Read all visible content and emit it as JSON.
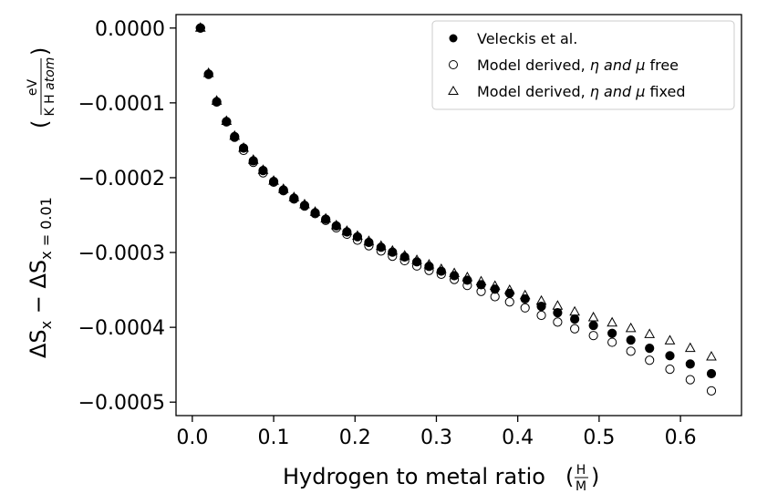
{
  "chart_data": {
    "type": "scatter",
    "title": "",
    "xlabel": "Hydrogen to metal ratio",
    "xlabel_fraction": {
      "numerator": "H",
      "denominator": "M"
    },
    "ylabel_parts": {
      "delta_s": "ΔS",
      "sub_x": "x",
      "minus": " − ",
      "sub_x_eq": "x = 0.01"
    },
    "ylabel_unit": {
      "numerator": "eV",
      "denominator_upright": "K H ",
      "denominator_italic": "atom"
    },
    "xlim": [
      -0.02,
      0.675
    ],
    "ylim": [
      -0.000518,
      1.8e-05
    ],
    "xticks": [
      0.0,
      0.1,
      0.2,
      0.3,
      0.4,
      0.5,
      0.6
    ],
    "xtick_labels": [
      "0.0",
      "0.1",
      "0.2",
      "0.3",
      "0.4",
      "0.5",
      "0.6"
    ],
    "yticks": [
      0.0,
      -0.0001,
      -0.0002,
      -0.0003,
      -0.0004,
      -0.0005
    ],
    "ytick_labels": [
      "0.0000",
      "−0.0001",
      "−0.0002",
      "−0.0003",
      "−0.0004",
      "−0.0005"
    ],
    "grid": false,
    "legend_position": "top-right",
    "legend": {
      "veleckis": "Veleckis et al.",
      "free_prefix": "Model derived, ",
      "free_italic": "η and μ",
      "free_suffix": " free",
      "fixed_prefix": "Model derived, ",
      "fixed_italic": "η and μ",
      "fixed_suffix": " fixed"
    },
    "x": [
      0.01,
      0.02,
      0.03,
      0.042,
      0.052,
      0.063,
      0.075,
      0.087,
      0.1,
      0.112,
      0.125,
      0.138,
      0.151,
      0.164,
      0.177,
      0.19,
      0.203,
      0.217,
      0.232,
      0.246,
      0.261,
      0.276,
      0.291,
      0.306,
      0.322,
      0.338,
      0.355,
      0.372,
      0.39,
      0.409,
      0.429,
      0.449,
      0.47,
      0.493,
      0.516,
      0.539,
      0.562,
      0.587,
      0.612,
      0.638
    ],
    "series": [
      {
        "name": "Veleckis et al.",
        "marker": "filled-circle",
        "values": [
          0.0,
          -6.15e-05,
          -9.85e-05,
          -0.000125,
          -0.000145,
          -0.0001605,
          -0.0001775,
          -0.0001905,
          -0.000205,
          -0.0002165,
          -0.0002275,
          -0.000237,
          -0.000247,
          -0.0002555,
          -0.0002645,
          -0.0002725,
          -0.000279,
          -0.0002865,
          -0.000293,
          -0.0002995,
          -0.000306,
          -0.0003125,
          -0.0003185,
          -0.000325,
          -0.000331,
          -0.000337,
          -0.000343,
          -0.000349,
          -0.0003545,
          -0.000362,
          -0.000372,
          -0.0003805,
          -0.000389,
          -0.0003975,
          -0.000408,
          -0.000417,
          -0.000428,
          -0.000438,
          -0.000449,
          -0.000462
        ]
      },
      {
        "name": "Model derived, η and μ free",
        "marker": "open-circle",
        "values": [
          0.0,
          -6.2e-05,
          -9.9e-05,
          -0.0001255,
          -0.000146,
          -0.0001635,
          -0.0001795,
          -0.0001935,
          -0.000206,
          -0.0002175,
          -0.0002285,
          -0.000238,
          -0.000248,
          -0.000257,
          -0.000267,
          -0.0002755,
          -0.0002835,
          -0.000291,
          -0.000298,
          -0.000305,
          -0.000311,
          -0.000318,
          -0.000324,
          -0.000329,
          -0.000336,
          -0.000344,
          -0.000352,
          -0.000359,
          -0.000366,
          -0.000374,
          -0.000384,
          -0.000393,
          -0.000402,
          -0.000411,
          -0.00042,
          -0.000432,
          -0.000444,
          -0.000456,
          -0.00047,
          -0.000485
        ]
      },
      {
        "name": "Model derived, η and μ fixed",
        "marker": "open-triangle",
        "values": [
          0.0,
          -6.05e-05,
          -9.75e-05,
          -0.0001245,
          -0.0001445,
          -0.0001605,
          -0.0001765,
          -0.00019,
          -0.0002045,
          -0.0002155,
          -0.0002265,
          -0.000236,
          -0.000246,
          -0.000255,
          -0.000264,
          -0.0002715,
          -0.000278,
          -0.000285,
          -0.0002915,
          -0.000298,
          -0.0003045,
          -0.0003105,
          -0.0003165,
          -0.0003225,
          -0.000328,
          -0.0003335,
          -0.000339,
          -0.000345,
          -0.0003505,
          -0.0003575,
          -0.000365,
          -0.0003715,
          -0.0003795,
          -0.000387,
          -0.000394,
          -0.0004015,
          -0.0004095,
          -0.000418,
          -0.000428,
          -0.0004395
        ]
      }
    ]
  }
}
